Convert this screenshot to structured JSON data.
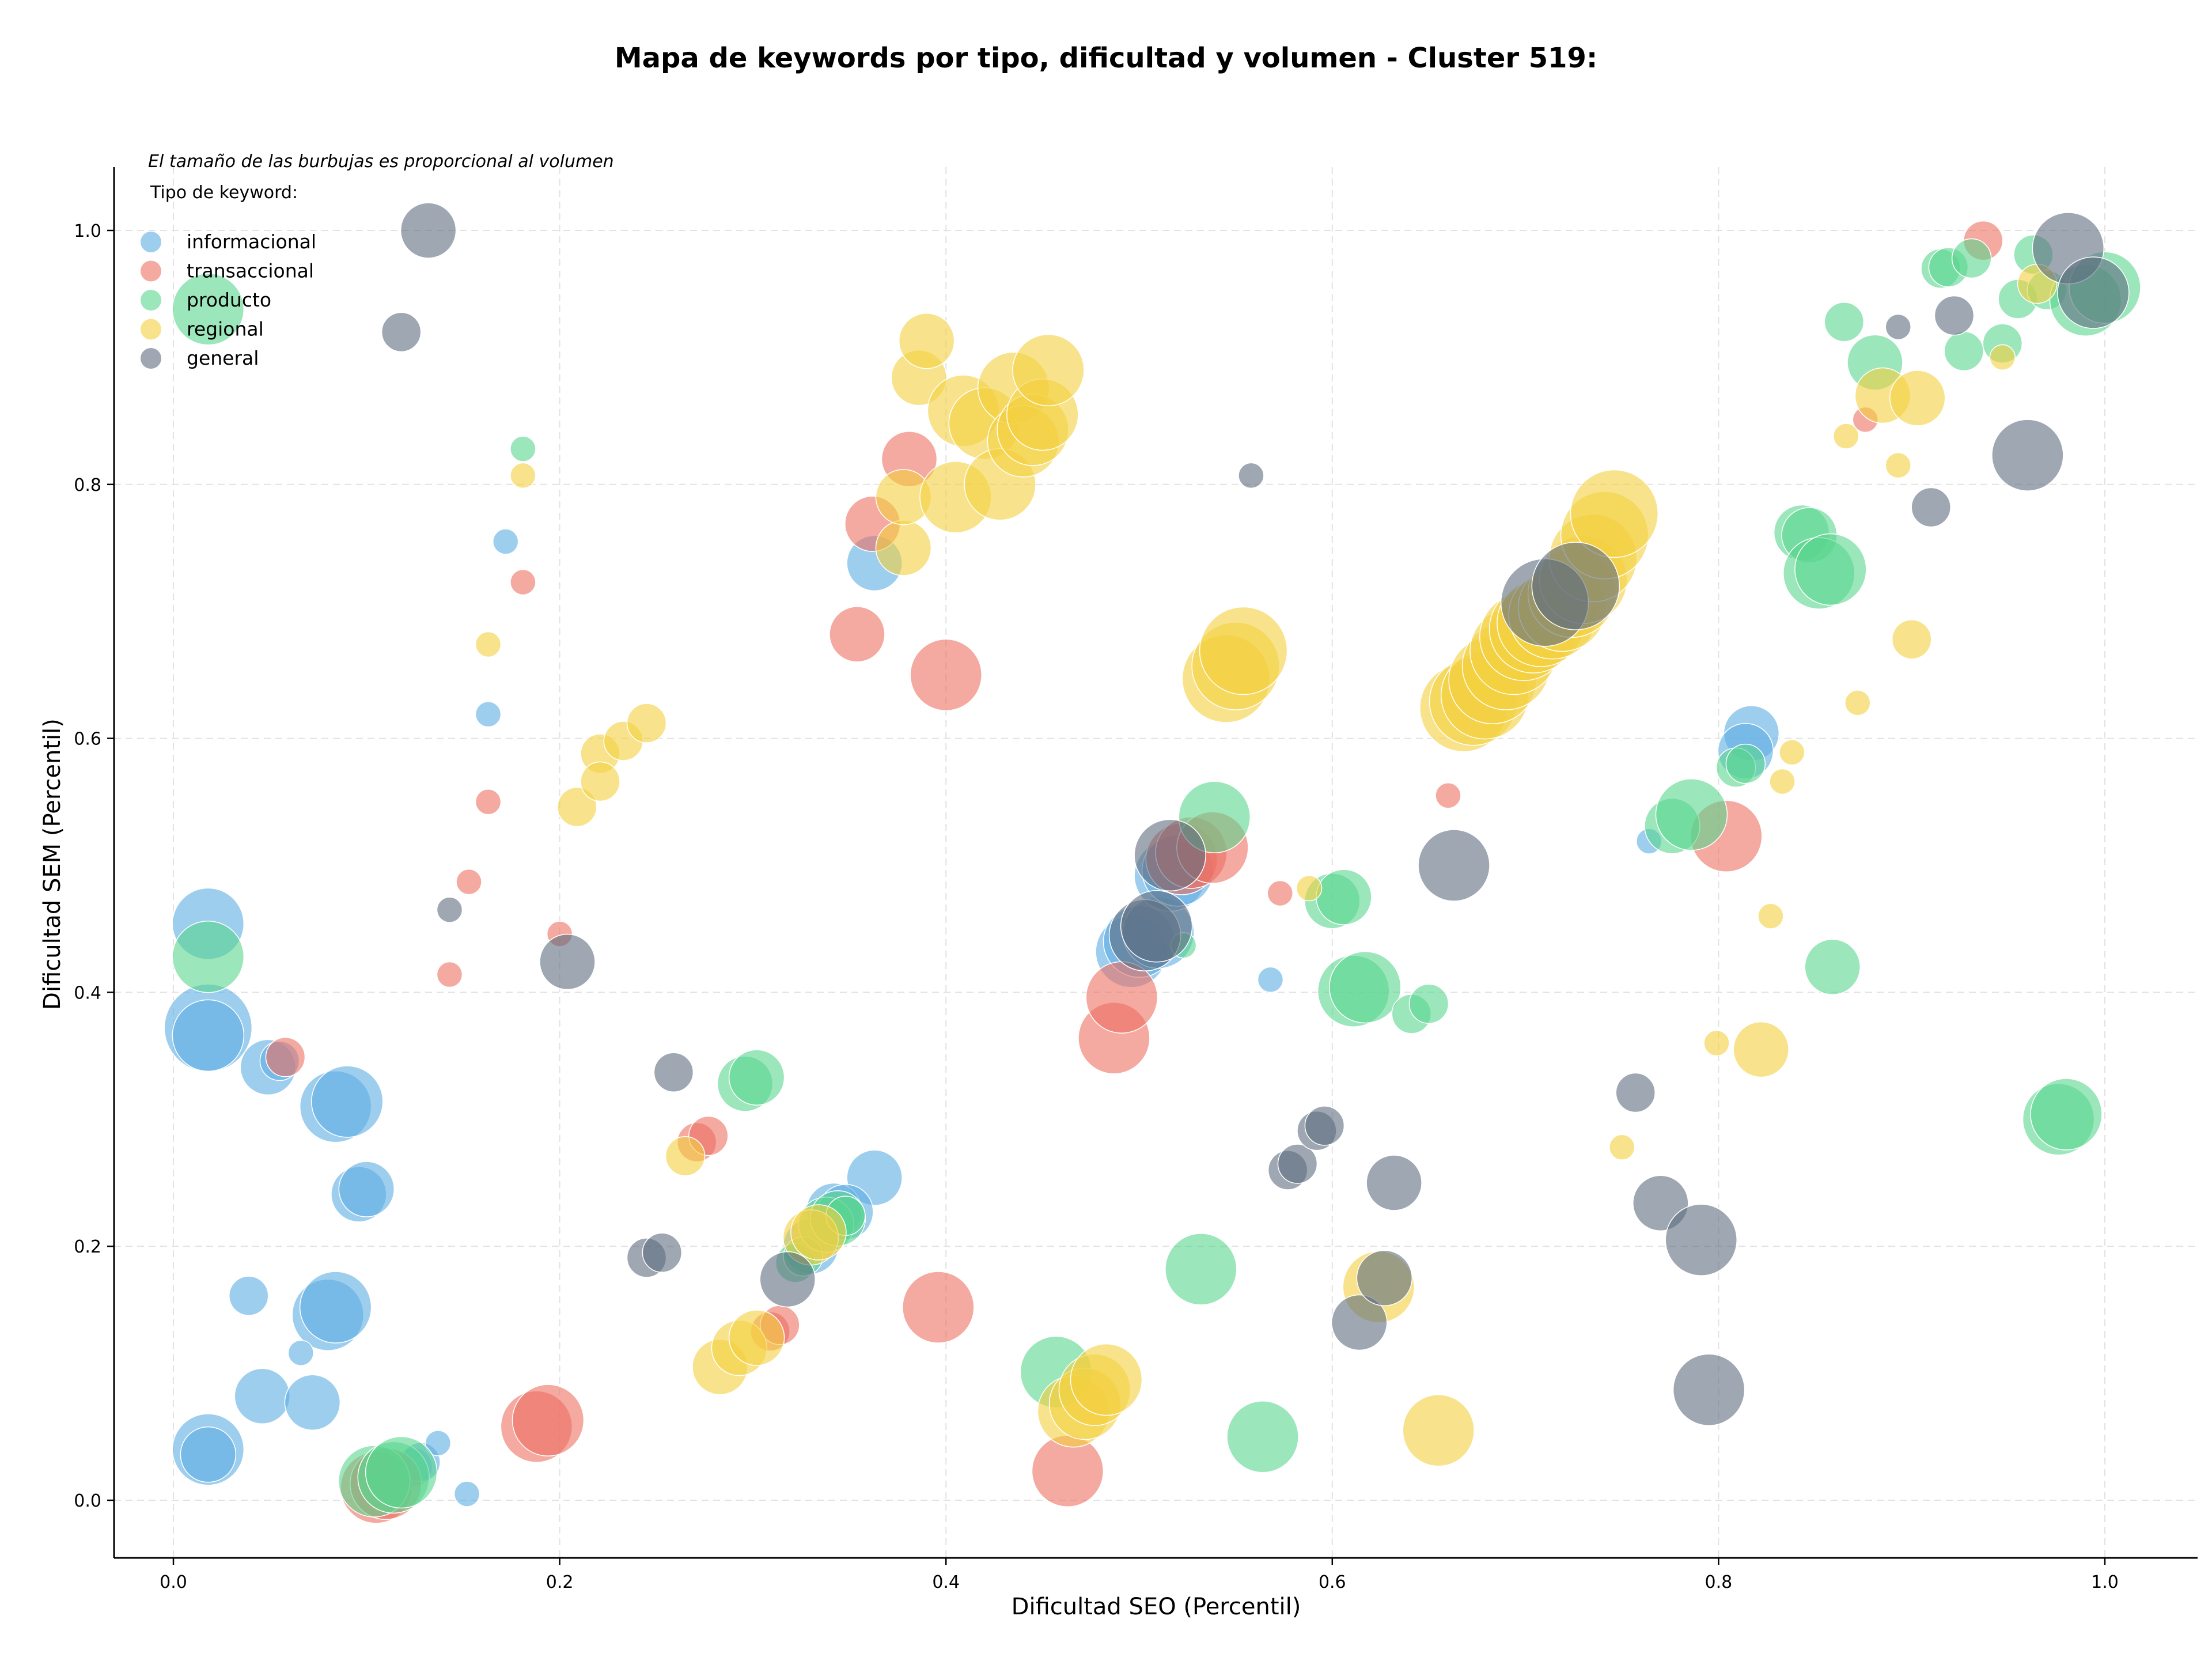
{
  "chart_data": {
    "type": "scatter",
    "title": "Mapa de keywords por tipo, dificultad y volumen - Cluster 519:",
    "xlabel": "Dificultad SEO (Percentil)",
    "ylabel": "Dificultad SEM (Percentil)",
    "note": "El tamaño de las burbujas es proporcional al volumen",
    "legend_title": "Tipo de keyword:",
    "legend_position": "top-left",
    "grid": true,
    "xlim": [
      -0.03,
      1.05
    ],
    "ylim": [
      -0.045,
      1.05
    ],
    "x_ticks": [
      0.0,
      0.2,
      0.4,
      0.6,
      0.8,
      1.0
    ],
    "y_ticks": [
      0.0,
      0.2,
      0.4,
      0.6,
      0.8,
      1.0
    ],
    "x_tick_labels": [
      "0.0",
      "0.2",
      "0.4",
      "0.6",
      "0.8",
      "1.0"
    ],
    "y_tick_labels": [
      "0.0",
      "0.2",
      "0.4",
      "0.6",
      "0.8",
      "1.0"
    ],
    "series": [
      {
        "name": "informacional",
        "color": "#5DADE2",
        "points": [
          [
            0.018,
            0.454,
            4
          ],
          [
            0.018,
            0.372,
            5
          ],
          [
            0.018,
            0.366,
            4
          ],
          [
            0.018,
            0.04,
            4
          ],
          [
            0.018,
            0.036,
            3
          ],
          [
            0.049,
            0.341,
            3
          ],
          [
            0.055,
            0.346,
            2
          ],
          [
            0.084,
            0.31,
            4
          ],
          [
            0.09,
            0.314,
            4
          ],
          [
            0.096,
            0.241,
            3
          ],
          [
            0.1,
            0.245,
            3
          ],
          [
            0.039,
            0.161,
            2
          ],
          [
            0.08,
            0.146,
            4
          ],
          [
            0.084,
            0.152,
            4
          ],
          [
            0.046,
            0.082,
            3
          ],
          [
            0.072,
            0.077,
            3
          ],
          [
            0.066,
            0.116,
            1
          ],
          [
            0.124,
            0.026,
            2
          ],
          [
            0.128,
            0.03,
            2
          ],
          [
            0.137,
            0.045,
            1
          ],
          [
            0.152,
            0.005,
            1
          ],
          [
            0.163,
            0.619,
            1
          ],
          [
            0.172,
            0.755,
            1
          ],
          [
            0.363,
            0.738,
            3
          ],
          [
            0.363,
            0.254,
            3
          ],
          [
            0.342,
            0.228,
            3
          ],
          [
            0.348,
            0.227,
            3
          ],
          [
            0.33,
            0.2,
            3
          ],
          [
            0.496,
            0.432,
            4
          ],
          [
            0.5,
            0.44,
            4
          ],
          [
            0.51,
            0.447,
            4
          ],
          [
            0.516,
            0.492,
            4
          ],
          [
            0.52,
            0.496,
            4
          ],
          [
            0.568,
            0.41,
            1
          ],
          [
            0.764,
            0.519,
            1
          ],
          [
            0.817,
            0.604,
            3
          ],
          [
            0.814,
            0.59,
            3
          ]
        ]
      },
      {
        "name": "transaccional",
        "color": "#EC7063",
        "points": [
          [
            0.058,
            0.349,
            2
          ],
          [
            0.105,
            0.01,
            4
          ],
          [
            0.11,
            0.013,
            4
          ],
          [
            0.188,
            0.058,
            4
          ],
          [
            0.194,
            0.063,
            4
          ],
          [
            0.143,
            0.414,
            1
          ],
          [
            0.153,
            0.487,
            1
          ],
          [
            0.163,
            0.55,
            1
          ],
          [
            0.181,
            0.723,
            1
          ],
          [
            0.2,
            0.446,
            1
          ],
          [
            0.271,
            0.282,
            2
          ],
          [
            0.277,
            0.287,
            2
          ],
          [
            0.309,
            0.133,
            2
          ],
          [
            0.314,
            0.138,
            2
          ],
          [
            0.354,
            0.682,
            3
          ],
          [
            0.362,
            0.769,
            3
          ],
          [
            0.381,
            0.82,
            3
          ],
          [
            0.4,
            0.65,
            4
          ],
          [
            0.396,
            0.152,
            4
          ],
          [
            0.463,
            0.023,
            4
          ],
          [
            0.487,
            0.364,
            4
          ],
          [
            0.491,
            0.396,
            4
          ],
          [
            0.522,
            0.505,
            4
          ],
          [
            0.527,
            0.51,
            4
          ],
          [
            0.538,
            0.514,
            4
          ],
          [
            0.573,
            0.478,
            1
          ],
          [
            0.66,
            0.555,
            1
          ],
          [
            0.804,
            0.523,
            4
          ],
          [
            0.876,
            0.851,
            1
          ],
          [
            0.937,
            0.992,
            2
          ]
        ]
      },
      {
        "name": "producto",
        "color": "#58D68D",
        "points": [
          [
            0.018,
            0.938,
            4
          ],
          [
            0.018,
            0.428,
            4
          ],
          [
            0.104,
            0.015,
            4
          ],
          [
            0.114,
            0.018,
            4
          ],
          [
            0.118,
            0.022,
            4
          ],
          [
            0.181,
            0.828,
            1
          ],
          [
            0.296,
            0.328,
            3
          ],
          [
            0.302,
            0.333,
            3
          ],
          [
            0.322,
            0.187,
            2
          ],
          [
            0.326,
            0.192,
            2
          ],
          [
            0.338,
            0.217,
            3
          ],
          [
            0.344,
            0.222,
            3
          ],
          [
            0.348,
            0.224,
            2
          ],
          [
            0.457,
            0.101,
            4
          ],
          [
            0.523,
            0.437,
            1
          ],
          [
            0.532,
            0.182,
            4
          ],
          [
            0.539,
            0.538,
            4
          ],
          [
            0.564,
            0.05,
            4
          ],
          [
            0.6,
            0.472,
            3
          ],
          [
            0.606,
            0.475,
            3
          ],
          [
            0.611,
            0.401,
            4
          ],
          [
            0.617,
            0.404,
            4
          ],
          [
            0.641,
            0.383,
            2
          ],
          [
            0.65,
            0.391,
            2
          ],
          [
            0.776,
            0.531,
            3
          ],
          [
            0.786,
            0.54,
            4
          ],
          [
            0.809,
            0.577,
            2
          ],
          [
            0.814,
            0.58,
            2
          ],
          [
            0.843,
            0.762,
            3
          ],
          [
            0.847,
            0.76,
            3
          ],
          [
            0.852,
            0.73,
            4
          ],
          [
            0.858,
            0.733,
            4
          ],
          [
            0.859,
            0.42,
            3
          ],
          [
            0.865,
            0.928,
            2
          ],
          [
            0.881,
            0.896,
            3
          ],
          [
            0.915,
            0.97,
            2
          ],
          [
            0.919,
            0.971,
            2
          ],
          [
            0.927,
            0.905,
            2
          ],
          [
            0.931,
            0.978,
            2
          ],
          [
            0.947,
            0.911,
            2
          ],
          [
            0.955,
            0.946,
            2
          ],
          [
            0.963,
            0.981,
            2
          ],
          [
            0.97,
            0.953,
            2
          ],
          [
            0.976,
            0.3,
            4
          ],
          [
            0.98,
            0.304,
            4
          ],
          [
            0.99,
            0.945,
            4
          ],
          [
            1.0,
            0.955,
            4
          ]
        ]
      },
      {
        "name": "regional",
        "color": "#F4D03F",
        "points": [
          [
            0.163,
            0.674,
            1
          ],
          [
            0.181,
            0.807,
            1
          ],
          [
            0.209,
            0.546,
            2
          ],
          [
            0.221,
            0.588,
            2
          ],
          [
            0.221,
            0.566,
            2
          ],
          [
            0.233,
            0.598,
            2
          ],
          [
            0.245,
            0.612,
            2
          ],
          [
            0.265,
            0.271,
            2
          ],
          [
            0.283,
            0.105,
            3
          ],
          [
            0.293,
            0.12,
            3
          ],
          [
            0.302,
            0.128,
            3
          ],
          [
            0.33,
            0.207,
            3
          ],
          [
            0.334,
            0.211,
            3
          ],
          [
            0.378,
            0.75,
            3
          ],
          [
            0.378,
            0.79,
            3
          ],
          [
            0.386,
            0.884,
            3
          ],
          [
            0.39,
            0.913,
            3
          ],
          [
            0.405,
            0.79,
            4
          ],
          [
            0.409,
            0.858,
            4
          ],
          [
            0.42,
            0.848,
            4
          ],
          [
            0.428,
            0.8,
            4
          ],
          [
            0.435,
            0.876,
            4
          ],
          [
            0.44,
            0.834,
            4
          ],
          [
            0.445,
            0.843,
            4
          ],
          [
            0.45,
            0.855,
            4
          ],
          [
            0.453,
            0.89,
            4
          ],
          [
            0.466,
            0.07,
            4
          ],
          [
            0.472,
            0.076,
            4
          ],
          [
            0.477,
            0.087,
            4
          ],
          [
            0.483,
            0.095,
            4
          ],
          [
            0.545,
            0.647,
            5
          ],
          [
            0.55,
            0.657,
            5
          ],
          [
            0.554,
            0.669,
            5
          ],
          [
            0.588,
            0.482,
            1
          ],
          [
            0.624,
            0.168,
            4
          ],
          [
            0.655,
            0.055,
            4
          ],
          [
            0.668,
            0.624,
            5
          ],
          [
            0.673,
            0.629,
            5
          ],
          [
            0.679,
            0.634,
            5
          ],
          [
            0.683,
            0.646,
            5
          ],
          [
            0.69,
            0.657,
            5
          ],
          [
            0.694,
            0.669,
            5
          ],
          [
            0.699,
            0.68,
            5
          ],
          [
            0.704,
            0.686,
            5
          ],
          [
            0.708,
            0.691,
            5
          ],
          [
            0.714,
            0.697,
            5
          ],
          [
            0.719,
            0.703,
            5
          ],
          [
            0.724,
            0.714,
            5
          ],
          [
            0.73,
            0.725,
            5
          ],
          [
            0.735,
            0.742,
            5
          ],
          [
            0.741,
            0.76,
            5
          ],
          [
            0.746,
            0.777,
            5
          ],
          [
            0.75,
            0.278,
            1
          ],
          [
            0.799,
            0.36,
            1
          ],
          [
            0.822,
            0.355,
            3
          ],
          [
            0.827,
            0.46,
            1
          ],
          [
            0.833,
            0.566,
            1
          ],
          [
            0.838,
            0.589,
            1
          ],
          [
            0.866,
            0.838,
            1
          ],
          [
            0.872,
            0.628,
            1
          ],
          [
            0.885,
            0.87,
            3
          ],
          [
            0.893,
            0.815,
            1
          ],
          [
            0.9,
            0.678,
            2
          ],
          [
            0.903,
            0.868,
            3
          ],
          [
            0.947,
            0.9,
            1
          ],
          [
            0.965,
            0.958,
            2
          ]
        ]
      },
      {
        "name": "general",
        "color": "#5D6D7E",
        "points": [
          [
            0.118,
            0.92,
            2
          ],
          [
            0.132,
            1.0,
            3
          ],
          [
            0.143,
            0.465,
            1
          ],
          [
            0.204,
            0.424,
            3
          ],
          [
            0.245,
            0.191,
            2
          ],
          [
            0.253,
            0.195,
            2
          ],
          [
            0.259,
            0.337,
            2
          ],
          [
            0.318,
            0.174,
            3
          ],
          [
            0.503,
            0.445,
            4
          ],
          [
            0.509,
            0.452,
            4
          ],
          [
            0.516,
            0.508,
            4
          ],
          [
            0.558,
            0.807,
            1
          ],
          [
            0.577,
            0.26,
            2
          ],
          [
            0.582,
            0.265,
            2
          ],
          [
            0.592,
            0.291,
            2
          ],
          [
            0.596,
            0.295,
            2
          ],
          [
            0.614,
            0.14,
            3
          ],
          [
            0.627,
            0.175,
            3
          ],
          [
            0.632,
            0.25,
            3
          ],
          [
            0.663,
            0.5,
            4
          ],
          [
            0.71,
            0.707,
            5
          ],
          [
            0.726,
            0.72,
            5
          ],
          [
            0.757,
            0.321,
            2
          ],
          [
            0.77,
            0.234,
            3
          ],
          [
            0.791,
            0.205,
            4
          ],
          [
            0.795,
            0.087,
            4
          ],
          [
            0.893,
            0.924,
            1
          ],
          [
            0.91,
            0.782,
            2
          ],
          [
            0.922,
            0.933,
            2
          ],
          [
            0.96,
            0.823,
            4
          ],
          [
            0.981,
            0.986,
            4
          ],
          [
            0.994,
            0.951,
            4
          ]
        ]
      }
    ]
  }
}
